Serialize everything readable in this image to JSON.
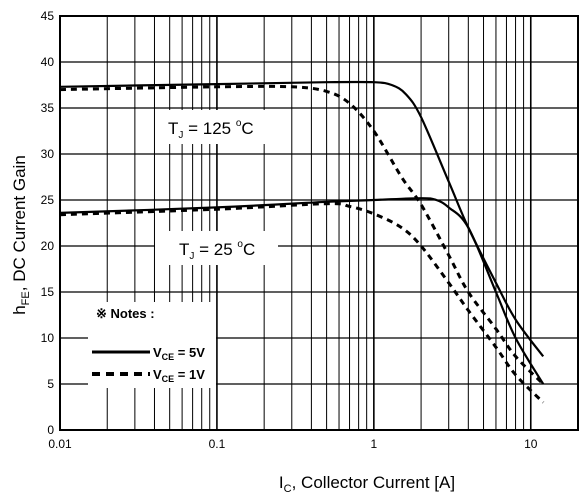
{
  "chart_data": {
    "type": "line",
    "xlabel": {
      "main": "I",
      "sub": "C",
      "rest": ", Collector Current [A]"
    },
    "ylabel": {
      "main": "h",
      "sub": "FE",
      "rest": ", DC Current Gain"
    },
    "xscale": "log",
    "xlim": [
      0.01,
      20
    ],
    "ylim": [
      0,
      45
    ],
    "grid": true,
    "x_tick_labels": [
      "0.01",
      "0.1",
      "1",
      "10"
    ],
    "x_tick_values": [
      0.01,
      0.1,
      1,
      10
    ],
    "y_ticks": [
      0,
      5,
      10,
      15,
      20,
      25,
      30,
      35,
      40,
      45
    ],
    "series": [
      {
        "name": "VCE = 5V, TJ = 125 °C",
        "style": "solid",
        "color": "#000000",
        "points": [
          [
            0.01,
            37.3
          ],
          [
            0.1,
            37.6
          ],
          [
            0.5,
            37.8
          ],
          [
            1,
            37.8
          ],
          [
            1.3,
            37.5
          ],
          [
            1.6,
            36.5
          ],
          [
            2,
            34.0
          ],
          [
            3,
            27.0
          ],
          [
            4,
            22.0
          ],
          [
            6,
            16.0
          ],
          [
            8,
            12.0
          ],
          [
            12,
            8.0
          ]
        ]
      },
      {
        "name": "VCE = 1V, TJ = 125 °C",
        "style": "dashed",
        "color": "#000000",
        "points": [
          [
            0.01,
            37.0
          ],
          [
            0.1,
            37.3
          ],
          [
            0.3,
            37.3
          ],
          [
            0.5,
            36.8
          ],
          [
            0.7,
            35.5
          ],
          [
            1,
            32.5
          ],
          [
            1.5,
            27.5
          ],
          [
            2,
            24.5
          ],
          [
            3,
            19.0
          ],
          [
            4,
            15.0
          ],
          [
            6,
            11.0
          ],
          [
            8,
            8.0
          ],
          [
            12,
            5.0
          ]
        ]
      },
      {
        "name": "VCE = 5V, TJ = 25 °C",
        "style": "solid",
        "color": "#000000",
        "points": [
          [
            0.01,
            23.6
          ],
          [
            0.1,
            24.2
          ],
          [
            0.5,
            24.8
          ],
          [
            1,
            25.0
          ],
          [
            2,
            25.2
          ],
          [
            2.5,
            25.0
          ],
          [
            3,
            24.2
          ],
          [
            4,
            22.0
          ],
          [
            6,
            15.0
          ],
          [
            8,
            10.0
          ],
          [
            12,
            5.0
          ]
        ]
      },
      {
        "name": "VCE = 1V, TJ = 25 °C",
        "style": "dashed",
        "color": "#000000",
        "points": [
          [
            0.01,
            23.4
          ],
          [
            0.1,
            24.0
          ],
          [
            0.5,
            24.6
          ],
          [
            0.7,
            24.3
          ],
          [
            1,
            23.5
          ],
          [
            1.5,
            22.0
          ],
          [
            2,
            20.0
          ],
          [
            3,
            16.0
          ],
          [
            4,
            13.0
          ],
          [
            6,
            9.0
          ],
          [
            8,
            6.0
          ],
          [
            12,
            3.0
          ]
        ]
      }
    ],
    "annotations": [
      {
        "id": "t125",
        "parts": {
          "pre": "T",
          "sub": "J",
          "mid": " = 125 ",
          "sup": "o",
          "post": "C"
        }
      },
      {
        "id": "t25",
        "parts": {
          "pre": "T",
          "sub": "J",
          "mid": " = 25 ",
          "sup": "o",
          "post": "C"
        }
      }
    ],
    "legend": {
      "title": "※ Notes :",
      "entries": [
        {
          "pre": "V",
          "sub": "CE",
          "post": " = 5V",
          "style": "solid"
        },
        {
          "pre": "V",
          "sub": "CE",
          "post": " = 1V",
          "style": "dashed"
        }
      ],
      "placement": "bottom-left"
    }
  }
}
